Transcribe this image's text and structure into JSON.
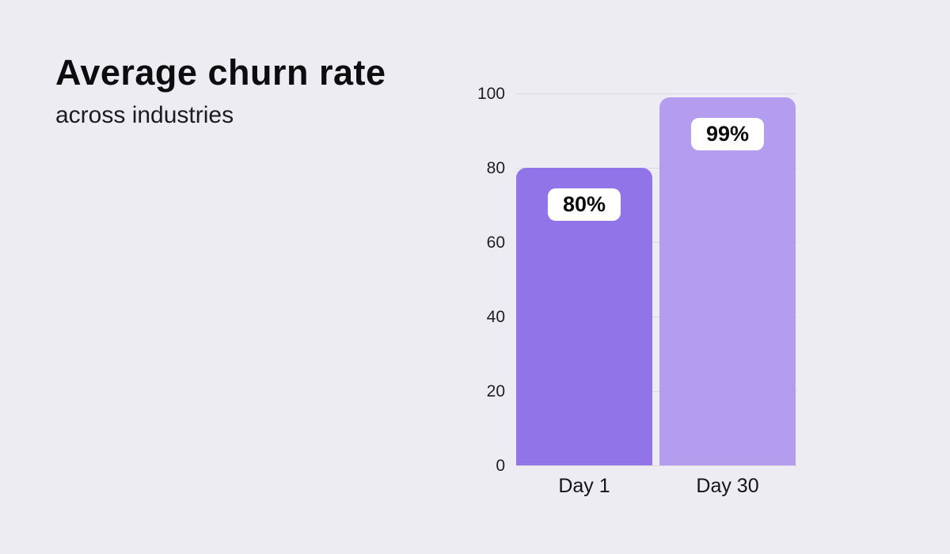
{
  "page": {
    "background_color": "#edecf2"
  },
  "header": {
    "title": "Average churn rate",
    "subtitle": "across industries"
  },
  "chart_data": {
    "type": "bar",
    "title": "Average churn rate",
    "subtitle": "across industries",
    "categories": [
      "Day 1",
      "Day 30"
    ],
    "values": [
      80,
      99
    ],
    "value_labels": [
      "80%",
      "99%"
    ],
    "bar_colors": [
      "#9174e8",
      "#b49def"
    ],
    "value_label_pill_bg": "#ffffff",
    "value_label_text_color": "#0b0b0d",
    "xlabel": "",
    "ylabel": "",
    "ylim": [
      0,
      100
    ],
    "yticks": [
      0,
      20,
      40,
      60,
      80,
      100
    ],
    "grid": true,
    "gridline_color": "#d9d8de",
    "legend": "none"
  }
}
